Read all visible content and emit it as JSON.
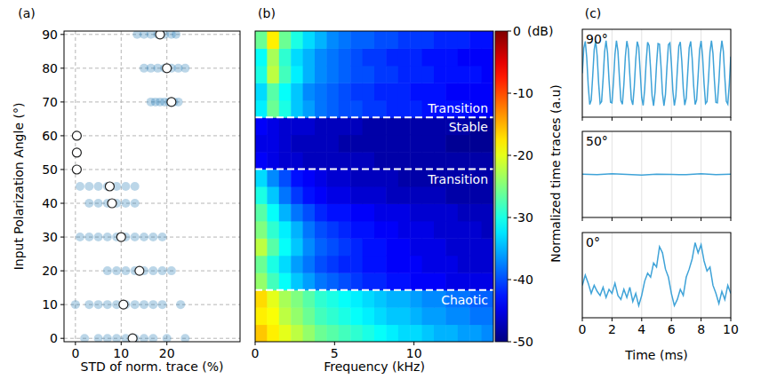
{
  "chart_data": [
    {
      "type": "scatter",
      "title": "(a)",
      "xlabel": "STD of norm. trace (%)",
      "ylabel": "Input Polarization Angle (°)",
      "xlim": [
        -2.5,
        36
      ],
      "ylim": [
        -1,
        91
      ],
      "xticks": [
        0,
        10,
        20
      ],
      "yticks": [
        0,
        10,
        20,
        30,
        40,
        50,
        60,
        70,
        80,
        90
      ],
      "grid": true,
      "series": [
        {
          "color": "#1f77b4",
          "marker": "circle",
          "x": [
            2,
            5,
            7,
            9,
            11,
            13,
            15,
            17,
            20,
            24,
            0,
            3,
            5,
            7,
            9,
            11,
            13,
            15,
            17,
            19,
            23,
            7,
            9,
            11,
            13,
            15,
            17,
            19,
            21,
            1,
            3,
            5,
            7,
            9,
            11,
            13,
            15,
            17,
            19,
            3,
            5,
            7,
            9,
            11,
            13,
            1,
            3,
            5,
            7,
            9,
            11,
            13,
            0.3,
            0.3,
            0.3,
            16.5,
            17.5,
            18.5,
            19.5,
            20.5,
            21.5,
            22.5,
            15,
            16.5,
            18,
            19.5,
            21,
            22.5,
            24,
            13.5,
            15,
            16.5,
            18,
            19.5,
            21,
            22
          ],
          "values": [
            0,
            0,
            0,
            0,
            0,
            0,
            0,
            0,
            0,
            0,
            10,
            10,
            10,
            10,
            10,
            10,
            10,
            10,
            10,
            10,
            10,
            20,
            20,
            20,
            20,
            20,
            20,
            20,
            20,
            30,
            30,
            30,
            30,
            30,
            30,
            30,
            30,
            30,
            30,
            40,
            40,
            40,
            40,
            40,
            40,
            45,
            45,
            45,
            45,
            45,
            45,
            45,
            50,
            55,
            60,
            70,
            70,
            70,
            70,
            70,
            70,
            70,
            80,
            80,
            80,
            80,
            80,
            80,
            80,
            90,
            90,
            90,
            90,
            90,
            90,
            90
          ]
        },
        {
          "color": "#ffffff",
          "marker": "circle",
          "x": [
            12.5,
            10.5,
            14,
            10,
            8,
            7.5,
            0.3,
            0.3,
            0.3,
            21,
            20,
            18.5
          ],
          "values": [
            0,
            10,
            20,
            30,
            40,
            45,
            50,
            55,
            60,
            70,
            80,
            90
          ]
        }
      ]
    },
    {
      "type": "heatmap",
      "title": "(b)",
      "xlabel": "Frequency (kHz)",
      "xlim": [
        0,
        15
      ],
      "ylim": [
        0,
        90
      ],
      "xticks": [
        0,
        5,
        10
      ],
      "tick_labels": "x",
      "x_edges": [
        0,
        0.75,
        1.5,
        2.25,
        3,
        3.75,
        4.5,
        5.25,
        6,
        6.75,
        7.5,
        8.25,
        9,
        9.75,
        10.5,
        11.25,
        12,
        12.75,
        13.5,
        14.25,
        15
      ],
      "y_edges": [
        0,
        5,
        10,
        15,
        20,
        25,
        30,
        35,
        40,
        45,
        50,
        55,
        60,
        65,
        70,
        75,
        80,
        85,
        90
      ],
      "cells": [
        [
          -16,
          -18,
          -20,
          -22,
          -24,
          -26,
          -27,
          -28,
          -29,
          -30,
          -31,
          -32,
          -33,
          -33,
          -34,
          -35,
          -35,
          -36,
          -36,
          -37
        ],
        [
          -18,
          -19,
          -22,
          -24,
          -26,
          -28,
          -29,
          -30,
          -31,
          -32,
          -33,
          -34,
          -34,
          -35,
          -36,
          -36,
          -37,
          -37,
          -38,
          -38
        ],
        [
          -17,
          -20,
          -23,
          -25,
          -27,
          -29,
          -30,
          -31,
          -32,
          -33,
          -34,
          -35,
          -35,
          -36,
          -37,
          -37,
          -38,
          -38,
          -39,
          -39
        ],
        [
          -24,
          -28,
          -31,
          -34,
          -36,
          -38,
          -39,
          -40,
          -41,
          -42,
          -42,
          -43,
          -43,
          -44,
          -44,
          -44,
          -45,
          -45,
          -45,
          -45
        ],
        [
          -26,
          -30,
          -33,
          -36,
          -38,
          -40,
          -41,
          -42,
          -42,
          -43,
          -43,
          -44,
          -44,
          -44,
          -45,
          -45,
          -45,
          -46,
          -46,
          -46
        ],
        [
          -22,
          -27,
          -31,
          -34,
          -37,
          -39,
          -40,
          -41,
          -42,
          -43,
          -43,
          -44,
          -44,
          -45,
          -45,
          -45,
          -46,
          -46,
          -46,
          -46
        ],
        [
          -25,
          -29,
          -32,
          -35,
          -38,
          -40,
          -41,
          -42,
          -43,
          -43,
          -44,
          -44,
          -45,
          -45,
          -45,
          -46,
          -46,
          -46,
          -46,
          -47
        ],
        [
          -27,
          -31,
          -35,
          -38,
          -40,
          -42,
          -43,
          -43,
          -44,
          -44,
          -45,
          -45,
          -45,
          -46,
          -46,
          -46,
          -46,
          -47,
          -47,
          -47
        ],
        [
          -30,
          -34,
          -38,
          -41,
          -43,
          -44,
          -45,
          -45,
          -46,
          -46,
          -46,
          -47,
          -47,
          -47,
          -47,
          -47,
          -48,
          -48,
          -48,
          -48
        ],
        [
          -33,
          -37,
          -40,
          -43,
          -44,
          -45,
          -46,
          -46,
          -47,
          -47,
          -47,
          -47,
          -48,
          -48,
          -48,
          -48,
          -48,
          -48,
          -48,
          -48
        ],
        [
          -44,
          -45,
          -46,
          -46,
          -47,
          -47,
          -47,
          -47,
          -47,
          -47,
          -48,
          -48,
          -48,
          -48,
          -48,
          -48,
          -48,
          -48,
          -48,
          -48
        ],
        [
          -45,
          -45,
          -46,
          -47,
          -47,
          -47,
          -47,
          -48,
          -48,
          -48,
          -48,
          -48,
          -48,
          -48,
          -48,
          -48,
          -49,
          -49,
          -49,
          -49
        ],
        [
          -44,
          -45,
          -46,
          -46,
          -46,
          -47,
          -47,
          -47,
          -47,
          -48,
          -48,
          -48,
          -48,
          -48,
          -48,
          -48,
          -48,
          -48,
          -49,
          -49
        ],
        [
          -32,
          -26,
          -30,
          -34,
          -36,
          -38,
          -39,
          -40,
          -40,
          -41,
          -41,
          -42,
          -42,
          -42,
          -43,
          -43,
          -43,
          -43,
          -44,
          -44
        ],
        [
          -33,
          -27,
          -31,
          -34,
          -37,
          -38,
          -39,
          -40,
          -41,
          -41,
          -42,
          -42,
          -42,
          -43,
          -43,
          -43,
          -44,
          -44,
          -44,
          -44
        ],
        [
          -30,
          -22,
          -28,
          -32,
          -35,
          -37,
          -38,
          -39,
          -40,
          -40,
          -41,
          -41,
          -42,
          -42,
          -42,
          -43,
          -43,
          -43,
          -43,
          -44
        ],
        [
          -31,
          -23,
          -29,
          -33,
          -35,
          -37,
          -38,
          -39,
          -40,
          -41,
          -41,
          -42,
          -42,
          -42,
          -43,
          -43,
          -43,
          -44,
          -44,
          -44
        ],
        [
          -26,
          -18,
          -26,
          -30,
          -33,
          -35,
          -37,
          -38,
          -39,
          -39,
          -40,
          -40,
          -41,
          -41,
          -41,
          -42,
          -42,
          -42,
          -43,
          -43
        ]
      ],
      "colorbar_range": [
        -50,
        0
      ],
      "colorbar_ticks": [
        -50,
        -40,
        -30,
        -20,
        -10,
        0
      ],
      "colorbar_label": "(dB)",
      "regions": [
        {
          "label": "Chaotic",
          "from": 0,
          "to": 15
        },
        {
          "label": "Transition",
          "from": 15,
          "to": 50
        },
        {
          "label": "Stable",
          "from": 50,
          "to": 65
        },
        {
          "label": "Transition",
          "from": 65,
          "to": 90
        }
      ]
    },
    {
      "type": "line",
      "title": "(c)",
      "subtitle": "90°",
      "xlim": [
        0,
        10
      ],
      "ylim": [
        -1.35,
        1.35
      ],
      "xticks": [
        0,
        2,
        4,
        6,
        8,
        10
      ],
      "grid": true,
      "tick_labels": false,
      "series": [
        {
          "color": "#3fa3d8",
          "x": [
            0,
            0.1,
            0.2,
            0.3,
            0.4,
            0.5,
            0.6,
            0.7,
            0.8,
            0.9,
            1,
            1.1,
            1.2,
            1.3,
            1.4,
            1.5,
            1.6,
            1.7,
            1.8,
            1.9,
            2,
            2.1,
            2.2,
            2.3,
            2.4,
            2.5,
            2.6,
            2.7,
            2.8,
            2.9,
            3,
            3.1,
            3.2,
            3.3,
            3.4,
            3.5,
            3.6,
            3.7,
            3.8,
            3.9,
            4,
            4.1,
            4.2,
            4.3,
            4.4,
            4.5,
            4.6,
            4.7,
            4.8,
            4.9,
            5,
            5.1,
            5.2,
            5.3,
            5.4,
            5.5,
            5.6,
            5.7,
            5.8,
            5.9,
            6,
            6.1,
            6.2,
            6.3,
            6.4,
            6.5,
            6.6,
            6.7,
            6.8,
            6.9,
            7,
            7.1,
            7.2,
            7.3,
            7.4,
            7.5,
            7.6,
            7.7,
            7.8,
            7.9,
            8,
            8.1,
            8.2,
            8.3,
            8.4,
            8.5,
            8.6,
            8.7,
            8.8,
            8.9,
            9,
            9.1,
            9.2,
            9.3,
            9.4,
            9.5,
            9.6,
            9.7,
            9.8,
            9.9,
            10
          ],
          "values": [
            0,
            0.77,
            0.98,
            0.47,
            -0.39,
            -0.96,
            -0.83,
            -0.09,
            0.72,
            0.99,
            0.54,
            -0.31,
            -0.93,
            -0.87,
            -0.18,
            0.65,
            1.0,
            0.62,
            -0.22,
            -0.89,
            -0.91,
            -0.26,
            0.58,
            1.0,
            0.68,
            -0.14,
            -0.85,
            -0.95,
            -0.34,
            0.51,
            0.99,
            0.74,
            -0.05,
            -0.8,
            -0.97,
            -0.42,
            0.43,
            0.97,
            0.8,
            0.04,
            -0.75,
            -0.99,
            -0.5,
            0.35,
            0.95,
            0.85,
            0.13,
            -0.69,
            -1.0,
            -0.58,
            0.27,
            0.91,
            0.89,
            0.22,
            -0.62,
            -1.0,
            -0.65,
            0.18,
            0.88,
            0.93,
            0.3,
            -0.55,
            -0.99,
            -0.71,
            0.09,
            0.83,
            0.96,
            0.38,
            -0.47,
            -0.98,
            -0.77,
            0.01,
            0.78,
            0.98,
            0.46,
            -0.39,
            -0.96,
            -0.82,
            -0.08,
            0.72,
            0.99,
            0.54,
            -0.31,
            -0.93,
            -0.87,
            -0.17,
            0.66,
            1.0,
            0.61,
            -0.23,
            -0.9,
            -0.91,
            -0.26,
            0.59,
            1.0,
            0.68,
            -0.14,
            -0.86,
            -0.95,
            -0.34,
            0.51
          ]
        }
      ]
    },
    {
      "type": "line",
      "subtitle": "50°",
      "ylabel": "Normalized time traces (a.u)",
      "xlim": [
        0,
        10
      ],
      "ylim": [
        -1.35,
        1.35
      ],
      "xticks": [
        0,
        2,
        4,
        6,
        8,
        10
      ],
      "grid": true,
      "tick_labels": false,
      "series": [
        {
          "color": "#3fa3d8",
          "x": [
            0,
            1,
            2,
            3,
            4,
            5,
            6,
            7,
            8,
            9,
            10
          ],
          "values": [
            0.01,
            -0.01,
            0.02,
            0,
            -0.02,
            0.01,
            0,
            -0.01,
            0.02,
            -0.01,
            0.01
          ]
        }
      ]
    },
    {
      "type": "line",
      "subtitle": "0°",
      "xlabel": "Time (ms)",
      "xlim": [
        0,
        10
      ],
      "ylim": [
        -0.9,
        1.2
      ],
      "xticks": [
        0,
        2,
        4,
        6,
        8,
        10
      ],
      "grid": true,
      "tick_labels": "x",
      "series": [
        {
          "color": "#3fa3d8",
          "x": [
            0,
            0.2,
            0.4,
            0.6,
            0.8,
            1,
            1.2,
            1.4,
            1.6,
            1.8,
            2,
            2.2,
            2.4,
            2.6,
            2.8,
            3,
            3.2,
            3.4,
            3.6,
            3.8,
            4,
            4.2,
            4.4,
            4.6,
            4.8,
            5,
            5.2,
            5.4,
            5.6,
            5.8,
            6,
            6.2,
            6.4,
            6.6,
            6.8,
            7,
            7.2,
            7.4,
            7.6,
            7.8,
            8,
            8.2,
            8.4,
            8.6,
            8.8,
            9,
            9.2,
            9.4,
            9.6,
            9.8,
            10
          ],
          "values": [
            -0.1,
            0.15,
            -0.05,
            -0.3,
            -0.1,
            -0.25,
            -0.35,
            -0.15,
            -0.4,
            -0.2,
            -0.3,
            -0.05,
            -0.35,
            -0.45,
            -0.2,
            -0.4,
            -0.15,
            -0.5,
            -0.3,
            -0.6,
            -0.35,
            0,
            0.2,
            0.1,
            0.45,
            0.35,
            0.85,
            0.7,
            0.3,
            0.1,
            -0.3,
            -0.6,
            -0.45,
            -0.2,
            -0.35,
            0.1,
            0.3,
            0.55,
            0.95,
            0.7,
            0.9,
            0.5,
            0.25,
            0.35,
            -0.1,
            -0.3,
            -0.55,
            -0.25,
            -0.45,
            -0.1,
            -0.3
          ]
        }
      ]
    }
  ]
}
